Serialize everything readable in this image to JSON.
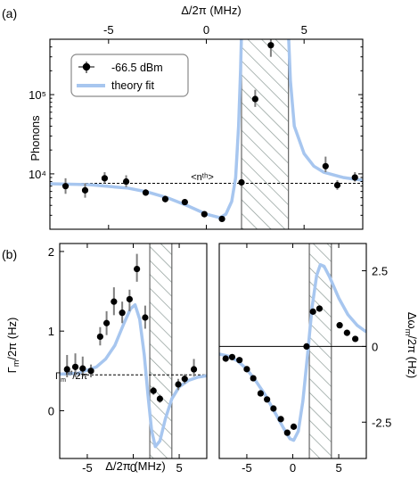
{
  "panel_labels": {
    "a": "(a)",
    "b": "(b)"
  },
  "colors": {
    "theory": "#a7c6ef",
    "data": "#000000",
    "errorbar": "#7f7f7f",
    "hatch": "#8c9a96",
    "dashed": "#000000"
  },
  "chart_data": [
    {
      "panel": "a",
      "type": "scatter",
      "title": "",
      "xlabel": "Δ/2π (MHz)",
      "ylabel": "Phonons",
      "xlim": [
        -8,
        8
      ],
      "ylim": [
        2000,
        500000
      ],
      "yscale": "log",
      "x_ticks": [
        "-5",
        "0",
        "5"
      ],
      "y_ticks": [
        "10⁴",
        "10⁵"
      ],
      "x_axis_position": "top",
      "legend": {
        "placement": "top-left",
        "entries": [
          "-66.5 dBm",
          "theory fit"
        ]
      },
      "reference_line": {
        "y": 7600,
        "label": "<nᵗʰ>",
        "style": "dashed"
      },
      "hatched_region": [
        1.8,
        4.2
      ],
      "series": [
        {
          "name": "-66.5 dBm",
          "points": [
            {
              "x": -7.2,
              "y": 7000,
              "err": [
                5600,
                8800
              ]
            },
            {
              "x": -6.2,
              "y": 6200,
              "err": [
                5000,
                7600
              ]
            },
            {
              "x": -5.2,
              "y": 8800,
              "err": [
                7600,
                10500
              ]
            },
            {
              "x": -4.1,
              "y": 8000,
              "err": [
                6800,
                9600
              ]
            },
            {
              "x": -3.1,
              "y": 5800,
              "err": [
                5300,
                6400
              ]
            },
            {
              "x": -2.1,
              "y": 4800,
              "err": [
                4400,
                5300
              ]
            },
            {
              "x": -1.1,
              "y": 4400,
              "err": [
                4100,
                4800
              ]
            },
            {
              "x": -0.1,
              "y": 3100,
              "err": [
                3000,
                3200
              ]
            },
            {
              "x": 0.8,
              "y": 2700,
              "err": [
                2500,
                2900
              ]
            },
            {
              "x": 1.8,
              "y": 7800,
              "err": [
                7300,
                8300
              ]
            },
            {
              "x": 2.5,
              "y": 88000,
              "err": [
                70000,
                115000
              ]
            },
            {
              "x": 3.3,
              "y": 420000,
              "err": [
                300000,
                500000
              ]
            },
            {
              "x": 6.1,
              "y": 12500,
              "err": [
                10500,
                16500
              ]
            },
            {
              "x": 6.7,
              "y": 7200,
              "err": [
                6300,
                8300
              ]
            },
            {
              "x": 7.6,
              "y": 9000,
              "err": [
                8000,
                10500
              ]
            }
          ]
        },
        {
          "name": "theory fit",
          "points": [
            {
              "x": -8,
              "y": 7500
            },
            {
              "x": -6,
              "y": 7300
            },
            {
              "x": -4,
              "y": 6600
            },
            {
              "x": -3,
              "y": 5900
            },
            {
              "x": -2,
              "y": 5000
            },
            {
              "x": -1,
              "y": 4000
            },
            {
              "x": 0,
              "y": 3100
            },
            {
              "x": 0.7,
              "y": 2800
            },
            {
              "x": 1.0,
              "y": 3100
            },
            {
              "x": 1.3,
              "y": 4500
            },
            {
              "x": 1.5,
              "y": 9000
            },
            {
              "x": 1.65,
              "y": 40000
            },
            {
              "x": 1.75,
              "y": 200000
            },
            {
              "x": 1.8,
              "y": 600000
            },
            {
              "x": 4.2,
              "y": 600000
            },
            {
              "x": 4.3,
              "y": 150000
            },
            {
              "x": 4.5,
              "y": 40000
            },
            {
              "x": 5.0,
              "y": 18000
            },
            {
              "x": 5.5,
              "y": 12500
            },
            {
              "x": 6,
              "y": 10500
            },
            {
              "x": 7,
              "y": 9000
            },
            {
              "x": 8,
              "y": 8300
            }
          ]
        }
      ]
    },
    {
      "panel": "b-left",
      "type": "scatter",
      "title": "",
      "xlabel": "Δ/2π (MHz)",
      "ylabel": "Γm/2π (Hz)",
      "xlim": [
        -8,
        8
      ],
      "ylim": [
        -0.6,
        2.1
      ],
      "x_ticks": [
        "-5",
        "0",
        "5"
      ],
      "y_ticks": [
        "0",
        "1",
        "2"
      ],
      "reference_line": {
        "y": 0.45,
        "label": "Γm int/2π",
        "style": "dashed"
      },
      "hatched_region": [
        1.8,
        4.2
      ],
      "series": [
        {
          "name": "",
          "points": [
            {
              "x": -7.2,
              "y": 0.52,
              "err": [
                0.42,
                0.7
              ]
            },
            {
              "x": -6.3,
              "y": 0.55,
              "err": [
                0.42,
                0.72
              ]
            },
            {
              "x": -5.5,
              "y": 0.53,
              "err": [
                0.43,
                0.68
              ]
            },
            {
              "x": -4.6,
              "y": 0.5,
              "err": [
                0.42,
                0.58
              ]
            },
            {
              "x": -3.6,
              "y": 0.93,
              "err": [
                0.82,
                1.05
              ]
            },
            {
              "x": -2.9,
              "y": 1.1,
              "err": [
                0.95,
                1.25
              ]
            },
            {
              "x": -2.1,
              "y": 1.37,
              "err": [
                1.2,
                1.55
              ]
            },
            {
              "x": -1.2,
              "y": 1.23,
              "err": [
                1.1,
                1.37
              ]
            },
            {
              "x": -0.4,
              "y": 1.4,
              "err": [
                1.25,
                1.52
              ]
            },
            {
              "x": 0.4,
              "y": 1.78,
              "err": [
                1.62,
                1.97
              ]
            },
            {
              "x": 1.3,
              "y": 1.17,
              "err": [
                1.03,
                1.32
              ]
            },
            {
              "x": 2.2,
              "y": 0.25,
              "err": [
                0.2,
                0.3
              ]
            },
            {
              "x": 2.9,
              "y": 0.15,
              "err": [
                0.1,
                0.2
              ]
            },
            {
              "x": 4.9,
              "y": 0.33,
              "err": [
                0.26,
                0.4
              ]
            },
            {
              "x": 5.6,
              "y": 0.4,
              "err": [
                0.34,
                0.46
              ]
            },
            {
              "x": 6.6,
              "y": 0.52,
              "err": [
                0.43,
                0.65
              ]
            }
          ]
        },
        {
          "name": "",
          "points": [
            {
              "x": -8,
              "y": 0.46
            },
            {
              "x": -6,
              "y": 0.47
            },
            {
              "x": -4,
              "y": 0.55
            },
            {
              "x": -3,
              "y": 0.65
            },
            {
              "x": -2,
              "y": 0.82
            },
            {
              "x": -1,
              "y": 1.1
            },
            {
              "x": -0.3,
              "y": 1.28
            },
            {
              "x": 0.2,
              "y": 1.33
            },
            {
              "x": 0.7,
              "y": 1.15
            },
            {
              "x": 1.2,
              "y": 0.7
            },
            {
              "x": 1.6,
              "y": 0.2
            },
            {
              "x": 2.0,
              "y": -0.25
            },
            {
              "x": 2.4,
              "y": -0.45
            },
            {
              "x": 2.9,
              "y": -0.38
            },
            {
              "x": 3.5,
              "y": -0.1
            },
            {
              "x": 4.2,
              "y": 0.15
            },
            {
              "x": 5,
              "y": 0.3
            },
            {
              "x": 6,
              "y": 0.38
            },
            {
              "x": 7,
              "y": 0.42
            },
            {
              "x": 8,
              "y": 0.44
            }
          ]
        }
      ]
    },
    {
      "panel": "b-right",
      "type": "scatter",
      "title": "",
      "xlabel": "",
      "ylabel": "Δωm/2π (Hz)",
      "xlim": [
        -8,
        8
      ],
      "ylim": [
        -3.7,
        3.4
      ],
      "x_ticks": [
        "-5",
        "0",
        "5"
      ],
      "y_ticks": [
        "2.5",
        "0",
        "-2.5"
      ],
      "y_axis_position": "right",
      "reference_line": {
        "y": 0,
        "style": "solid"
      },
      "hatched_region": [
        1.8,
        4.2
      ],
      "series": [
        {
          "name": "",
          "points": [
            {
              "x": -7.3,
              "y": -0.4
            },
            {
              "x": -6.6,
              "y": -0.35
            },
            {
              "x": -5.8,
              "y": -0.45
            },
            {
              "x": -5.0,
              "y": -0.75
            },
            {
              "x": -4.3,
              "y": -1.05
            },
            {
              "x": -3.5,
              "y": -1.55
            },
            {
              "x": -2.8,
              "y": -1.75
            },
            {
              "x": -2.1,
              "y": -2.05
            },
            {
              "x": -1.3,
              "y": -2.4
            },
            {
              "x": -0.6,
              "y": -2.85
            },
            {
              "x": 0.1,
              "y": -2.65
            },
            {
              "x": 1.5,
              "y": 0.0
            },
            {
              "x": 2.2,
              "y": 1.15
            },
            {
              "x": 2.9,
              "y": 1.25
            },
            {
              "x": 5.1,
              "y": 0.7
            },
            {
              "x": 5.9,
              "y": 0.45
            },
            {
              "x": 6.8,
              "y": 0.25
            }
          ]
        },
        {
          "name": "",
          "points": [
            {
              "x": -8,
              "y": -0.25
            },
            {
              "x": -7,
              "y": -0.32
            },
            {
              "x": -6,
              "y": -0.48
            },
            {
              "x": -5,
              "y": -0.75
            },
            {
              "x": -4,
              "y": -1.15
            },
            {
              "x": -3,
              "y": -1.6
            },
            {
              "x": -2,
              "y": -2.15
            },
            {
              "x": -1,
              "y": -2.7
            },
            {
              "x": -0.3,
              "y": -3.05
            },
            {
              "x": 0.1,
              "y": -3.1
            },
            {
              "x": 0.6,
              "y": -2.8
            },
            {
              "x": 1.1,
              "y": -1.8
            },
            {
              "x": 1.6,
              "y": -0.3
            },
            {
              "x": 2.1,
              "y": 1.3
            },
            {
              "x": 2.6,
              "y": 2.35
            },
            {
              "x": 3.0,
              "y": 2.7
            },
            {
              "x": 3.4,
              "y": 2.65
            },
            {
              "x": 4.0,
              "y": 2.3
            },
            {
              "x": 5,
              "y": 1.6
            },
            {
              "x": 6,
              "y": 1.05
            },
            {
              "x": 7,
              "y": 0.7
            },
            {
              "x": 8,
              "y": 0.48
            }
          ]
        }
      ]
    }
  ]
}
